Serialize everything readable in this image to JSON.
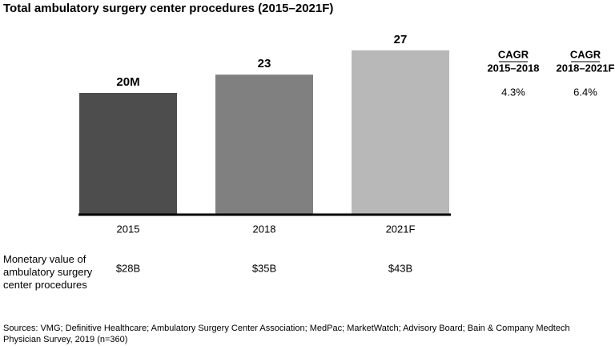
{
  "chart_data": {
    "type": "bar",
    "title": "Total ambulatory surgery center procedures (2015–2021F)",
    "categories": [
      "2015",
      "2018",
      "2021F"
    ],
    "values": [
      20,
      23,
      27
    ],
    "value_labels": [
      "20M",
      "23",
      "27"
    ],
    "colors": [
      "#4d4d4d",
      "#808080",
      "#b8b8b8"
    ],
    "cagr": [
      {
        "header": "CAGR",
        "period": "2015–2018",
        "value": "4.3%"
      },
      {
        "header": "CAGR",
        "period": "2018–2021F",
        "value": "6.4%"
      }
    ],
    "monetary_label": "Monetary value of ambulatory surgery center procedures",
    "monetary_values": [
      "$28B",
      "$35B",
      "$43B"
    ],
    "source": "Sources: VMG; Definitive Healthcare; Ambulatory Surgery Center Association; MedPac; MarketWatch; Advisory Board; Bain & Company Medtech Physician Survey, 2019 (n=360)"
  }
}
